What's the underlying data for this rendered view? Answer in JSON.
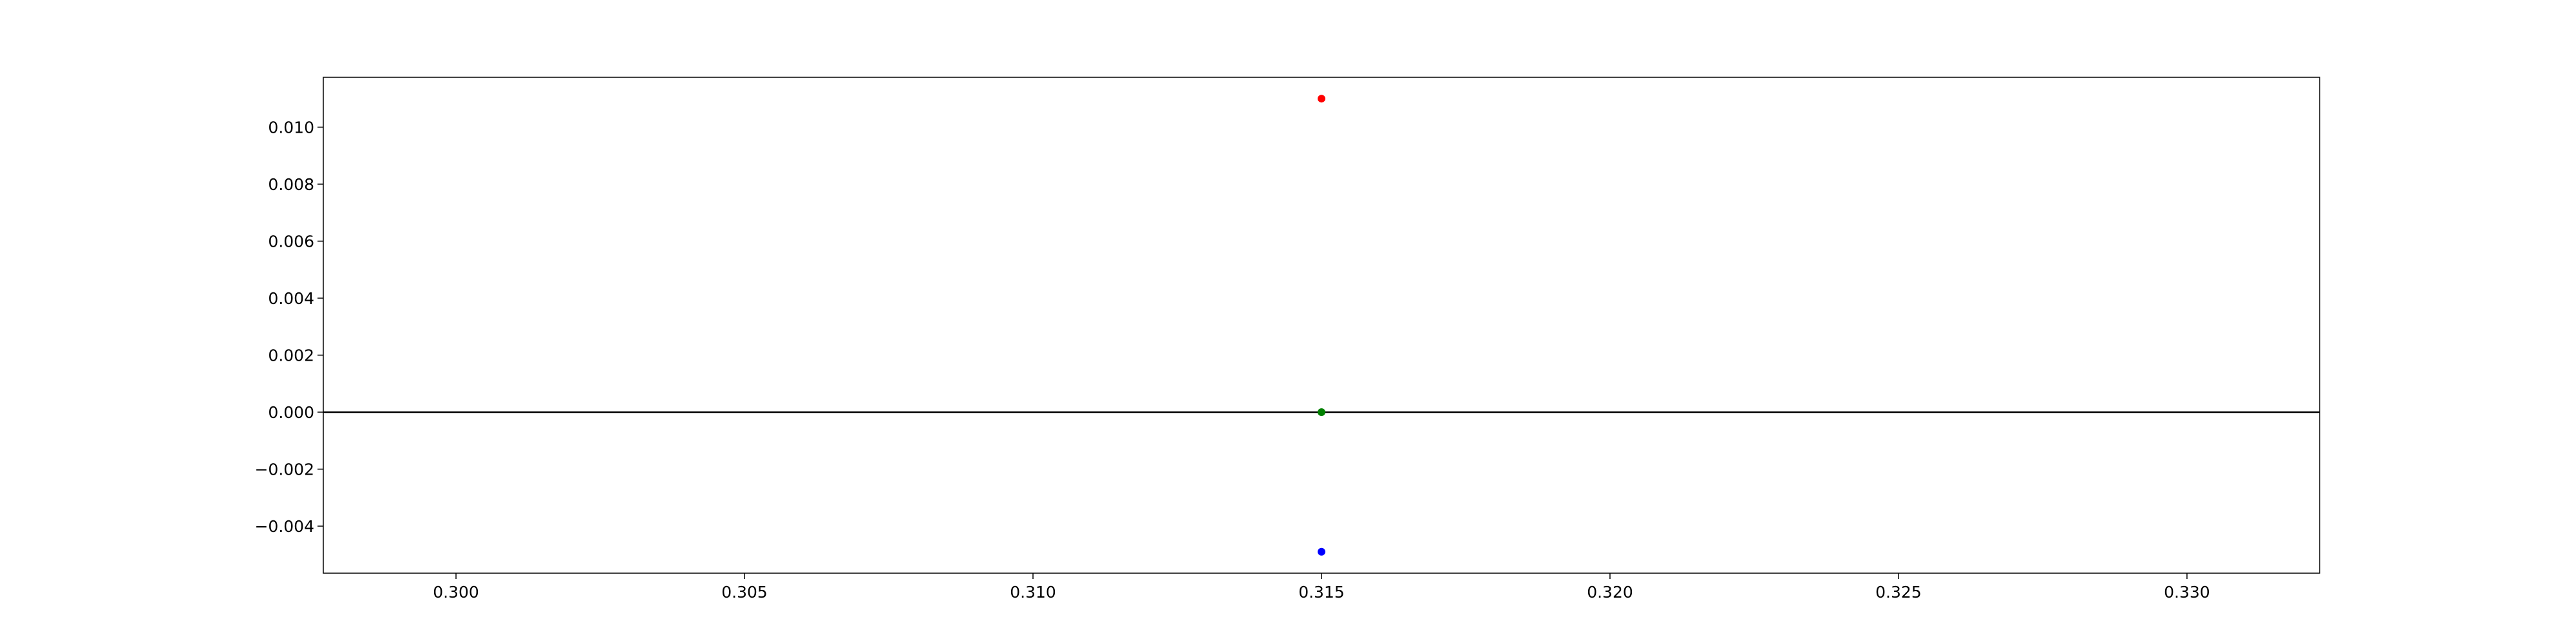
{
  "chart_data": {
    "type": "scatter",
    "title": "",
    "xlabel": "",
    "ylabel": "",
    "xlim": [
      0.2977,
      0.3323
    ],
    "ylim": [
      -0.00565,
      0.01175
    ],
    "x_ticks": [
      0.3,
      0.305,
      0.31,
      0.315,
      0.32,
      0.325,
      0.33
    ],
    "x_tick_labels": [
      "0.300",
      "0.305",
      "0.310",
      "0.315",
      "0.320",
      "0.325",
      "0.330"
    ],
    "y_ticks": [
      0.01,
      0.008,
      0.006,
      0.004,
      0.002,
      0.0,
      -0.002,
      -0.004
    ],
    "y_tick_labels": [
      "0.010",
      "0.008",
      "0.006",
      "0.004",
      "0.002",
      "0.000",
      "−0.002",
      "−0.004"
    ],
    "reference_line": {
      "y": 0.0,
      "color": "#000000"
    },
    "grid": false,
    "series": [
      {
        "color": "#ff0000",
        "points": [
          {
            "x": 0.315,
            "y": 0.011
          }
        ]
      },
      {
        "color": "#008000",
        "points": [
          {
            "x": 0.315,
            "y": 0.0
          }
        ]
      },
      {
        "color": "#0000ff",
        "points": [
          {
            "x": 0.315,
            "y": -0.0049
          }
        ]
      }
    ]
  }
}
